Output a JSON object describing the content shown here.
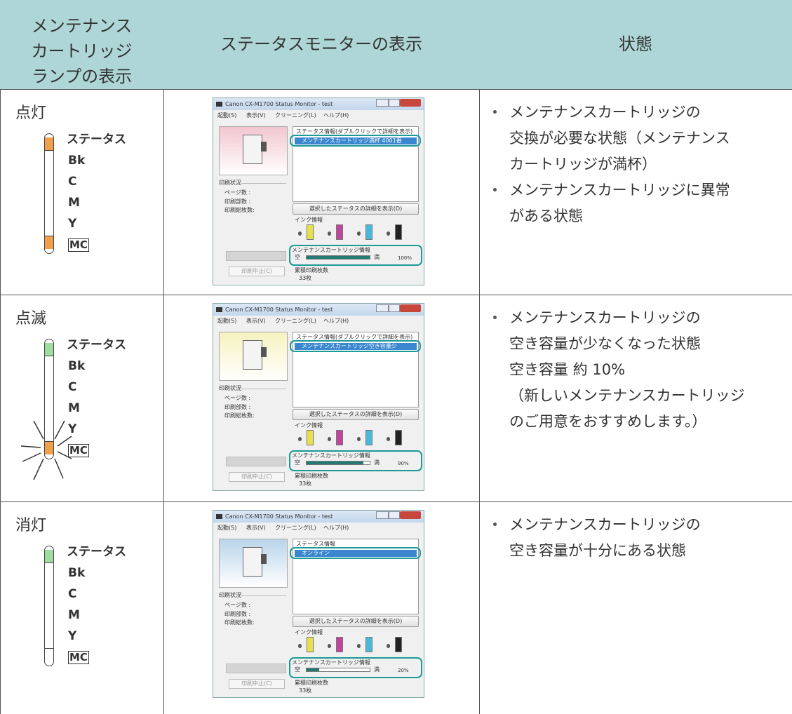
{
  "header": {
    "lamp": [
      "メンテナンス",
      "カートリッジ",
      "ランプの表示"
    ],
    "monitor": "ステータスモニターの表示",
    "state": "状態"
  },
  "lamp_labels": [
    "ステータス",
    "Bk",
    "C",
    "M",
    "Y",
    "MC"
  ],
  "rows": [
    {
      "lamp_state": "点灯",
      "status_color": "#f0a04a",
      "mc_color": "#f0a04a",
      "blinking": false,
      "monitor": {
        "title": "Canon CX-M1700 Status Monitor - test",
        "menu": [
          "起動(S)",
          "表示(V)",
          "クリーニング(L)",
          "ヘルプ(H)"
        ],
        "status_header": "ステータス情報(ダブルクリックで詳細を表示)",
        "status_item": "メンテナンスカートリッジ満杯 4001番",
        "print_status": "印刷状況",
        "page_count": "ページ数 :",
        "copies": "印刷部数 :",
        "total_sheets": "印刷総枚数:",
        "detail_button": "選択したステータスの詳細を表示(D)",
        "ink_info": "インク情報",
        "mc_info": "メンテナンスカートリッジ情報",
        "empty": "空",
        "full": "満",
        "level": {
          "value": 100,
          "label": "100%"
        },
        "cumulative": "累積印刷枚数",
        "sheets": "33枚",
        "cancel": "印刷中止(C)",
        "image_color": "#f2c6d0"
      },
      "bullets": [
        [
          "メンテナンスカートリッジの",
          "交換が必要な状態（メンテナンス",
          "カートリッジが満杯）"
        ],
        [
          "メンテナンスカートリッジに異常",
          "がある状態"
        ]
      ]
    },
    {
      "lamp_state": "点滅",
      "status_color": "#9fdc9f",
      "mc_color": "#f0a04a",
      "blinking": true,
      "monitor": {
        "title": "Canon CX-M1700 Status Monitor - test",
        "menu": [
          "起動(S)",
          "表示(V)",
          "クリーニング(L)",
          "ヘルプ(H)"
        ],
        "status_header": "ステータス情報(ダブルクリックで詳細を表示)",
        "status_item": "メンテナンスカートリッジ空き容量少",
        "print_status": "印刷状況",
        "page_count": "ページ数 :",
        "copies": "印刷部数 :",
        "total_sheets": "印刷総枚数:",
        "detail_button": "選択したステータスの詳細を表示(D)",
        "ink_info": "インク情報",
        "mc_info": "メンテナンスカートリッジ情報",
        "empty": "空",
        "full": "満",
        "level": {
          "value": 90,
          "label": "90%"
        },
        "cumulative": "累積印刷枚数",
        "sheets": "33枚",
        "cancel": "印刷中止(C)",
        "image_color": "#f7f2bf"
      },
      "bullets": [
        [
          "メンテナンスカートリッジの",
          "空き容量が少なくなった状態",
          "空き容量 約 10%",
          "（新しいメンテナンスカートリッジ",
          "のご用意をおすすめします。）"
        ]
      ]
    },
    {
      "lamp_state": "消灯",
      "status_color": "#9fdc9f",
      "mc_color": "#ffffff",
      "blinking": false,
      "monitor": {
        "title": "Canon CX-M1700 Status Monitor - test",
        "menu": [
          "起動(S)",
          "表示(V)",
          "クリーニング(L)",
          "ヘルプ(H)"
        ],
        "status_header": "ステータス情報",
        "status_item": "オンライン",
        "print_status": "印刷状況",
        "page_count": "ページ数 :",
        "copies": "印刷部数 :",
        "total_sheets": "印刷総枚数:",
        "detail_button": "選択したステータスの詳細を表示(D)",
        "ink_info": "インク情報",
        "mc_info": "メンテナンスカートリッジ情報",
        "empty": "空",
        "full": "満",
        "level": {
          "value": 20,
          "label": "20%"
        },
        "cumulative": "累積印刷枚数",
        "sheets": "33枚",
        "cancel": "印刷中止(C)",
        "image_color": "#b9d4ea"
      },
      "bullets": [
        [
          "メンテナンスカートリッジの",
          "空き容量が十分にある状態"
        ]
      ]
    }
  ]
}
